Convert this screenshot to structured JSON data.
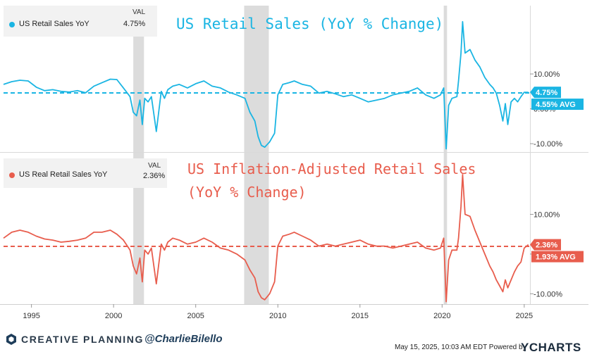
{
  "colors": {
    "retail": "#1ab5e3",
    "real": "#e85d4d",
    "recession": "#dcdcdc",
    "grid": "#e6e6e6",
    "axis_text": "#333333",
    "footer_text": "#2a3a4a"
  },
  "chart_data": [
    {
      "type": "line",
      "title": "US Retail Sales (YoY % Change)",
      "series": [
        {
          "name": "US Retail Sales YoY",
          "color": "#1ab5e3",
          "x": [
            1993.3,
            1993.8,
            1994.3,
            1994.8,
            1995.3,
            1995.8,
            1996.3,
            1996.8,
            1997.3,
            1997.8,
            1998.3,
            1998.8,
            1999.3,
            1999.8,
            2000.2,
            2000.6,
            2001.0,
            2001.2,
            2001.4,
            2001.6,
            2001.75,
            2001.9,
            2002.1,
            2002.3,
            2002.6,
            2002.9,
            2003.1,
            2003.3,
            2003.6,
            2004.0,
            2004.5,
            2005.0,
            2005.5,
            2006.0,
            2006.5,
            2007.0,
            2007.5,
            2008.0,
            2008.3,
            2008.6,
            2008.8,
            2009.0,
            2009.2,
            2009.5,
            2009.8,
            2010.0,
            2010.3,
            2010.7,
            2011.0,
            2011.5,
            2012.0,
            2012.5,
            2013.0,
            2013.5,
            2014.0,
            2014.5,
            2015.0,
            2015.5,
            2016.0,
            2016.5,
            2017.0,
            2017.5,
            2018.0,
            2018.5,
            2019.0,
            2019.5,
            2019.9,
            2020.1,
            2020.25,
            2020.4,
            2020.6,
            2020.9,
            2021.0,
            2021.15,
            2021.25,
            2021.4,
            2021.7,
            2022.0,
            2022.3,
            2022.6,
            2022.9,
            2023.1,
            2023.3,
            2023.5,
            2023.7,
            2023.85,
            2024.0,
            2024.2,
            2024.4,
            2024.6,
            2024.8,
            2025.0,
            2025.25
          ],
          "y": [
            7.0,
            7.8,
            8.2,
            8.0,
            6.2,
            5.2,
            5.5,
            5.0,
            4.8,
            5.2,
            4.6,
            6.5,
            7.5,
            8.5,
            8.4,
            6.0,
            3.5,
            -1.0,
            -2.0,
            2.5,
            -4.5,
            3.0,
            2.0,
            3.5,
            -6.5,
            5.0,
            3.0,
            5.5,
            6.5,
            7.0,
            6.0,
            7.2,
            8.0,
            6.5,
            6.0,
            4.8,
            4.0,
            3.0,
            -1.0,
            -3.5,
            -8.0,
            -10.5,
            -11.0,
            -9.5,
            -7.0,
            4.0,
            7.0,
            7.5,
            8.0,
            7.0,
            6.5,
            4.5,
            5.0,
            4.3,
            3.5,
            4.0,
            3.0,
            2.0,
            2.5,
            3.0,
            4.0,
            4.5,
            5.0,
            6.0,
            4.0,
            3.0,
            4.0,
            6.0,
            -11.5,
            1.0,
            3.0,
            3.5,
            8.0,
            16.0,
            25.0,
            16.0,
            17.0,
            14.0,
            12.0,
            9.0,
            7.0,
            6.0,
            4.5,
            1.0,
            -3.5,
            1.5,
            -4.5,
            2.0,
            3.0,
            2.0,
            3.5,
            4.75,
            4.75
          ]
        }
      ],
      "legend": {
        "name": "US Retail Sales YoY",
        "header": "VAL",
        "value": "4.75%"
      },
      "y_ticks": [
        "10.00%",
        "0.00%",
        "-10.00%"
      ],
      "ylim": [
        -12.4,
        29.6
      ],
      "xlim": [
        1993.3,
        2025.35
      ],
      "current_value": 4.75,
      "current_label": "4.75%",
      "average_value": 4.55,
      "average_label": "4.55% AVG"
    },
    {
      "type": "line",
      "title": "US Inflation-Adjusted Retail Sales",
      "subtitle": "(YoY % Change)",
      "series": [
        {
          "name": "US Real Retail Sales YoY",
          "color": "#e85d4d",
          "x": [
            1993.3,
            1993.8,
            1994.3,
            1994.8,
            1995.3,
            1995.8,
            1996.3,
            1996.8,
            1997.3,
            1997.8,
            1998.3,
            1998.8,
            1999.3,
            1999.8,
            2000.2,
            2000.6,
            2001.0,
            2001.2,
            2001.4,
            2001.6,
            2001.75,
            2001.9,
            2002.1,
            2002.3,
            2002.6,
            2002.9,
            2003.1,
            2003.3,
            2003.6,
            2004.0,
            2004.5,
            2005.0,
            2005.5,
            2006.0,
            2006.5,
            2007.0,
            2007.5,
            2008.0,
            2008.3,
            2008.6,
            2008.8,
            2009.0,
            2009.2,
            2009.5,
            2009.8,
            2010.0,
            2010.3,
            2010.7,
            2011.0,
            2011.5,
            2012.0,
            2012.5,
            2013.0,
            2013.5,
            2014.0,
            2014.5,
            2015.0,
            2015.5,
            2016.0,
            2016.5,
            2017.0,
            2017.5,
            2018.0,
            2018.5,
            2019.0,
            2019.5,
            2019.9,
            2020.1,
            2020.25,
            2020.4,
            2020.6,
            2020.9,
            2021.0,
            2021.15,
            2021.25,
            2021.4,
            2021.7,
            2022.0,
            2022.3,
            2022.6,
            2022.9,
            2023.1,
            2023.3,
            2023.5,
            2023.7,
            2023.85,
            2024.0,
            2024.2,
            2024.4,
            2024.6,
            2024.8,
            2025.0,
            2025.25
          ],
          "y": [
            4.0,
            5.5,
            6.0,
            5.5,
            4.5,
            3.8,
            3.5,
            3.0,
            3.2,
            3.5,
            4.0,
            5.5,
            5.5,
            6.0,
            5.0,
            3.5,
            1.0,
            -3.0,
            -5.0,
            -1.0,
            -7.0,
            1.0,
            0.0,
            1.5,
            -7.5,
            2.5,
            1.0,
            3.0,
            4.0,
            3.5,
            2.5,
            3.0,
            4.0,
            3.0,
            1.5,
            1.0,
            0.0,
            -1.5,
            -4.0,
            -6.0,
            -9.5,
            -11.0,
            -11.5,
            -10.0,
            -7.0,
            2.0,
            4.5,
            5.0,
            5.5,
            4.5,
            3.5,
            2.0,
            2.5,
            2.0,
            2.5,
            3.0,
            3.5,
            2.5,
            2.0,
            2.0,
            1.5,
            2.0,
            2.5,
            3.0,
            1.5,
            1.0,
            1.5,
            4.0,
            -12.0,
            -1.5,
            1.0,
            1.0,
            4.0,
            12.0,
            20.0,
            10.0,
            9.5,
            6.0,
            3.0,
            0.0,
            -3.0,
            -4.5,
            -6.5,
            -8.0,
            -9.5,
            -6.5,
            -8.5,
            -6.5,
            -4.5,
            -3.0,
            -2.0,
            1.5,
            2.36
          ]
        }
      ],
      "legend": {
        "name": "US Real Retail Sales YoY",
        "header": "VAL",
        "value": "2.36%"
      },
      "y_ticks": [
        "10.00%",
        "0.00%",
        "-10.00%"
      ],
      "ylim": [
        -12.6,
        25.5
      ],
      "xlim": [
        1993.3,
        2025.35
      ],
      "current_value": 2.36,
      "current_label": "2.36%",
      "average_value": 1.93,
      "average_label": "1.93% AVG"
    }
  ],
  "x_axis": {
    "ticks": [
      1995,
      2000,
      2005,
      2010,
      2015,
      2020,
      2025
    ],
    "labels": [
      "1995",
      "2000",
      "2005",
      "2010",
      "2015",
      "2020",
      "2025"
    ]
  },
  "recessions": [
    [
      2001.2,
      2001.85
    ],
    [
      2007.95,
      2009.45
    ],
    [
      2020.1,
      2020.3
    ]
  ],
  "footer": {
    "brand": "CREATIVE PLANNING",
    "handle": "@CharlieBilello",
    "note": "May 15, 2025, 10:03 AM EDT Powered by",
    "logo": "YCHARTS"
  }
}
